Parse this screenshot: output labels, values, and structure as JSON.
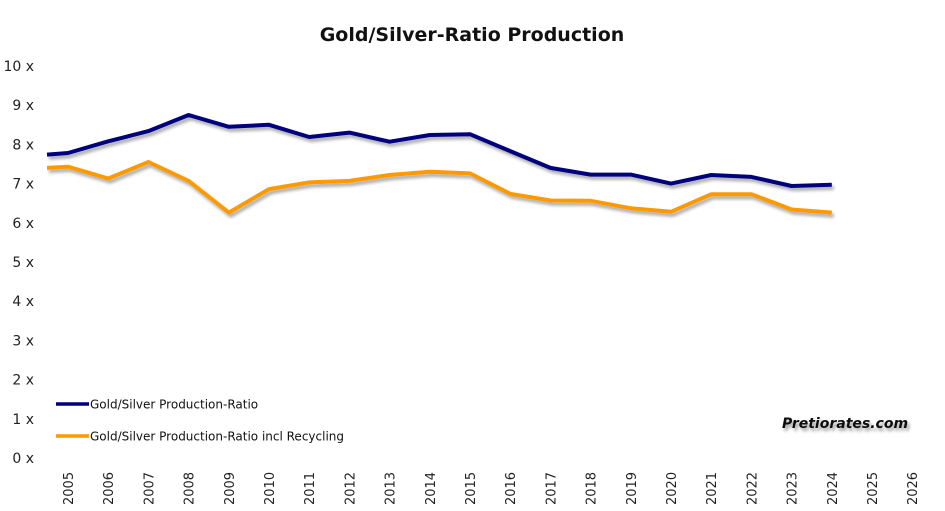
{
  "chart_data": {
    "type": "line",
    "title": "Gold/Silver-Ratio Production",
    "xlabel": "",
    "ylabel": "",
    "x": [
      2004,
      2005,
      2006,
      2007,
      2008,
      2009,
      2010,
      2011,
      2012,
      2013,
      2014,
      2015,
      2016,
      2017,
      2018,
      2019,
      2020,
      2021,
      2022,
      2023,
      2024
    ],
    "x_tick_labels": [
      "2005",
      "2006",
      "2007",
      "2008",
      "2009",
      "2010",
      "2011",
      "2012",
      "2013",
      "2014",
      "2015",
      "2016",
      "2017",
      "2018",
      "2019",
      "2020",
      "2021",
      "2022",
      "2023",
      "2024",
      "2025",
      "2026"
    ],
    "xlim": [
      2004.5,
      2026
    ],
    "y_tick_labels": [
      "0 x",
      "1 x",
      "2 x",
      "3 x",
      "4 x",
      "5 x",
      "6 x",
      "7 x",
      "8 x",
      "9 x",
      "10 x"
    ],
    "ylim": [
      0,
      10
    ],
    "grid": false,
    "legend_position": "bottom-left",
    "series": [
      {
        "name": "Gold/Silver Production-Ratio",
        "color": "#00007f",
        "values": [
          7.74,
          7.78,
          8.08,
          8.34,
          8.75,
          8.45,
          8.5,
          8.19,
          8.3,
          8.07,
          8.24,
          8.26,
          7.83,
          7.4,
          7.23,
          7.23,
          7.0,
          7.22,
          7.17,
          6.94,
          6.97
        ]
      },
      {
        "name": "Gold/Silver Production-Ratio incl Recycling",
        "color": "#ff9900",
        "values": [
          7.4,
          7.43,
          7.13,
          7.55,
          7.07,
          6.26,
          6.86,
          7.03,
          7.07,
          7.22,
          7.3,
          7.26,
          6.74,
          6.57,
          6.56,
          6.37,
          6.28,
          6.73,
          6.73,
          6.34,
          6.26
        ]
      }
    ],
    "annotations": [
      "Pretiorates.com"
    ]
  }
}
